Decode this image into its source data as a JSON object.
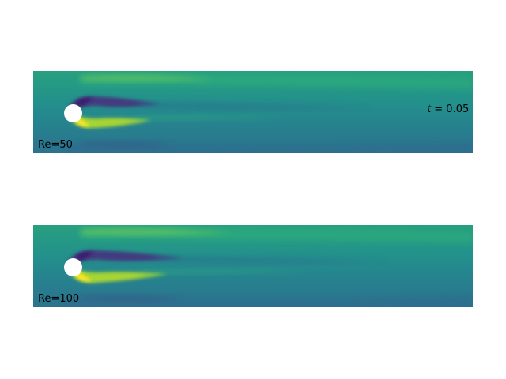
{
  "time": {
    "symbol": "t",
    "separator": "=",
    "value": "0.05"
  },
  "panels": [
    {
      "label": "Re=50"
    },
    {
      "label": "Re=100"
    }
  ],
  "colors": {
    "base_teal": "#25858e",
    "upper_green": "#27a57f",
    "upper_bright": "#5ec962",
    "lower_dark": "#2e6f8e",
    "vortex_dark": "#46327e",
    "vortex_deep": "#3a1d6e",
    "shear_yellow": "#c8e020",
    "shear_bright": "#fde725",
    "cylinder": "#ffffff"
  },
  "colormap": "viridis"
}
